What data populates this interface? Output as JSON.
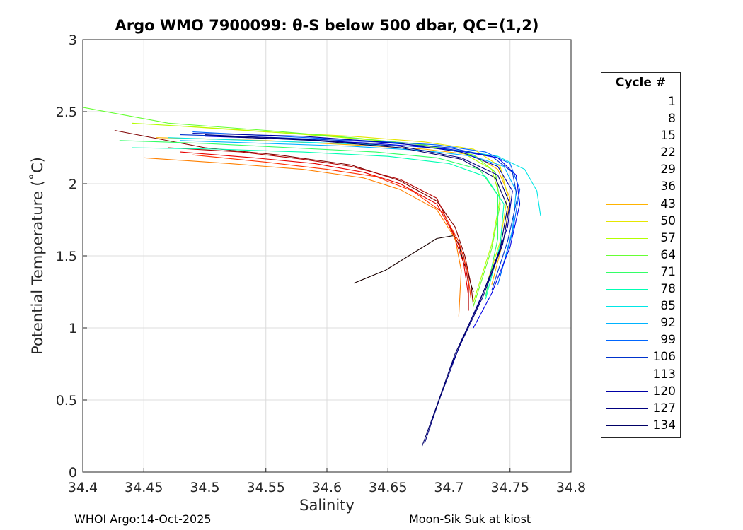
{
  "chart_data": {
    "type": "line",
    "title": "Argo WMO 7900099: θ-S below 500 dbar,  QC=(1,2)",
    "xlabel": "Salinity",
    "ylabel": "Potential Temperature (˚C)",
    "xlim": [
      34.4,
      34.8
    ],
    "ylim": [
      0,
      3
    ],
    "x_ticks": [
      "34.4",
      "34.45",
      "34.5",
      "34.55",
      "34.6",
      "34.65",
      "34.7",
      "34.75",
      "34.8"
    ],
    "y_ticks": [
      "0",
      "0.5",
      "1",
      "1.5",
      "2",
      "2.5",
      "3"
    ],
    "grid": true,
    "legend_title": "Cycle #",
    "legend_position": "right-outside",
    "series": [
      {
        "name": "1",
        "color": "#1a0000",
        "x": [
          34.622,
          34.648,
          34.69,
          34.704,
          34.708,
          34.712,
          34.715,
          34.718,
          34.72
        ],
        "y": [
          1.31,
          1.4,
          1.62,
          1.64,
          1.58,
          1.45,
          1.4,
          1.3,
          1.25
        ]
      },
      {
        "name": "8",
        "color": "#7f0000",
        "x": [
          34.426,
          34.5,
          34.56,
          34.62,
          34.66,
          34.69,
          34.705,
          34.713,
          34.718,
          34.72
        ],
        "y": [
          2.37,
          2.25,
          2.2,
          2.13,
          2.02,
          1.88,
          1.7,
          1.5,
          1.3,
          1.15
        ]
      },
      {
        "name": "15",
        "color": "#b30000",
        "x": [
          34.47,
          34.53,
          34.58,
          34.62,
          34.66,
          34.69,
          34.7,
          34.712,
          34.716,
          34.716
        ],
        "y": [
          2.25,
          2.22,
          2.17,
          2.12,
          2.03,
          1.9,
          1.72,
          1.5,
          1.3,
          1.12
        ]
      },
      {
        "name": "22",
        "color": "#e60000",
        "x": [
          34.48,
          34.54,
          34.59,
          34.63,
          34.66,
          34.69,
          34.703,
          34.712,
          34.716
        ],
        "y": [
          2.22,
          2.18,
          2.14,
          2.08,
          2.0,
          1.86,
          1.66,
          1.45,
          1.22
        ]
      },
      {
        "name": "29",
        "color": "#ff3300",
        "x": [
          34.49,
          34.55,
          34.6,
          34.64,
          34.67,
          34.695,
          34.708,
          34.715,
          34.718
        ],
        "y": [
          2.2,
          2.15,
          2.1,
          2.05,
          1.95,
          1.8,
          1.6,
          1.4,
          1.2
        ]
      },
      {
        "name": "36",
        "color": "#ff8000",
        "x": [
          34.45,
          34.52,
          34.58,
          34.63,
          34.66,
          34.69,
          34.705,
          34.71,
          34.708
        ],
        "y": [
          2.18,
          2.14,
          2.1,
          2.04,
          1.96,
          1.82,
          1.62,
          1.4,
          1.08
        ]
      },
      {
        "name": "43",
        "color": "#ffb300",
        "x": [
          34.46,
          34.55,
          34.62,
          34.68,
          34.72,
          34.74,
          34.75,
          34.745,
          34.735
        ],
        "y": [
          2.32,
          2.3,
          2.27,
          2.24,
          2.2,
          2.1,
          1.9,
          1.62,
          1.3
        ]
      },
      {
        "name": "50",
        "color": "#e6e600",
        "x": [
          34.48,
          34.55,
          34.62,
          34.68,
          34.72,
          34.742,
          34.748,
          34.742,
          34.73
        ],
        "y": [
          2.4,
          2.36,
          2.33,
          2.29,
          2.24,
          2.12,
          1.92,
          1.6,
          1.28
        ]
      },
      {
        "name": "57",
        "color": "#b3ff00",
        "x": [
          34.44,
          34.52,
          34.6,
          34.67,
          34.71,
          34.735,
          34.742,
          34.735,
          34.72
        ],
        "y": [
          2.42,
          2.38,
          2.33,
          2.28,
          2.22,
          2.1,
          1.9,
          1.58,
          1.18
        ]
      },
      {
        "name": "64",
        "color": "#66ff33",
        "x": [
          34.4,
          34.47,
          34.55,
          34.62,
          34.68,
          34.72,
          34.738,
          34.742,
          34.735,
          34.72
        ],
        "y": [
          2.53,
          2.42,
          2.37,
          2.32,
          2.27,
          2.2,
          2.08,
          1.86,
          1.55,
          1.15
        ]
      },
      {
        "name": "71",
        "color": "#33ff66",
        "x": [
          34.43,
          34.5,
          34.57,
          34.64,
          34.69,
          34.725,
          34.74,
          34.74,
          34.73
        ],
        "y": [
          2.3,
          2.28,
          2.25,
          2.22,
          2.18,
          2.1,
          1.92,
          1.62,
          1.22
        ]
      },
      {
        "name": "78",
        "color": "#00ffb3",
        "x": [
          34.44,
          34.51,
          34.58,
          34.65,
          34.7,
          34.73,
          34.745,
          34.742,
          34.73
        ],
        "y": [
          2.25,
          2.24,
          2.22,
          2.19,
          2.14,
          2.05,
          1.86,
          1.58,
          1.2
        ]
      },
      {
        "name": "85",
        "color": "#00e6e6",
        "x": [
          34.47,
          34.54,
          34.61,
          34.67,
          34.71,
          34.74,
          34.762,
          34.772,
          34.775
        ],
        "y": [
          2.32,
          2.3,
          2.28,
          2.26,
          2.23,
          2.19,
          2.1,
          1.95,
          1.78
        ]
      },
      {
        "name": "92",
        "color": "#00b3ff",
        "x": [
          34.48,
          34.55,
          34.62,
          34.68,
          34.72,
          34.745,
          34.755,
          34.752,
          34.742
        ],
        "y": [
          2.3,
          2.28,
          2.26,
          2.23,
          2.19,
          2.12,
          1.95,
          1.68,
          1.36
        ]
      },
      {
        "name": "99",
        "color": "#0066ff",
        "x": [
          34.49,
          34.56,
          34.63,
          34.69,
          34.73,
          34.75,
          34.758,
          34.752,
          34.74
        ],
        "y": [
          2.36,
          2.33,
          2.3,
          2.27,
          2.22,
          2.14,
          1.96,
          1.66,
          1.3
        ]
      },
      {
        "name": "106",
        "color": "#0033cc",
        "x": [
          34.48,
          34.56,
          34.64,
          34.7,
          34.735,
          34.752,
          34.756,
          34.748,
          34.735
        ],
        "y": [
          2.34,
          2.32,
          2.29,
          2.25,
          2.19,
          2.08,
          1.9,
          1.6,
          1.26
        ]
      },
      {
        "name": "113",
        "color": "#0000e6",
        "x": [
          34.5,
          34.57,
          34.64,
          34.7,
          34.74,
          34.755,
          34.758,
          34.75,
          34.735,
          34.72
        ],
        "y": [
          2.33,
          2.31,
          2.28,
          2.24,
          2.18,
          2.06,
          1.86,
          1.56,
          1.24,
          1.0
        ]
      },
      {
        "name": "120",
        "color": "#0000a6",
        "x": [
          34.49,
          34.58,
          34.66,
          34.71,
          34.74,
          34.752,
          34.748,
          34.735,
          34.715,
          34.7
        ],
        "y": [
          2.35,
          2.33,
          2.28,
          2.22,
          2.12,
          1.95,
          1.7,
          1.38,
          1.0,
          0.7
        ]
      },
      {
        "name": "127",
        "color": "#000080",
        "x": [
          34.5,
          34.58,
          34.66,
          34.71,
          34.74,
          34.75,
          34.744,
          34.728,
          34.708,
          34.692,
          34.68
        ],
        "y": [
          2.34,
          2.31,
          2.26,
          2.18,
          2.06,
          1.86,
          1.58,
          1.22,
          0.86,
          0.5,
          0.2
        ]
      },
      {
        "name": "134",
        "color": "#000066",
        "x": [
          34.51,
          34.59,
          34.66,
          34.71,
          34.738,
          34.748,
          34.742,
          34.725,
          34.705,
          34.69,
          34.678
        ],
        "y": [
          2.33,
          2.3,
          2.25,
          2.17,
          2.04,
          1.84,
          1.55,
          1.18,
          0.82,
          0.46,
          0.18
        ]
      }
    ]
  },
  "footer": {
    "left": "WHOI Argo:14-Oct-2025",
    "right": "Moon-Sik Suk at kiost"
  }
}
